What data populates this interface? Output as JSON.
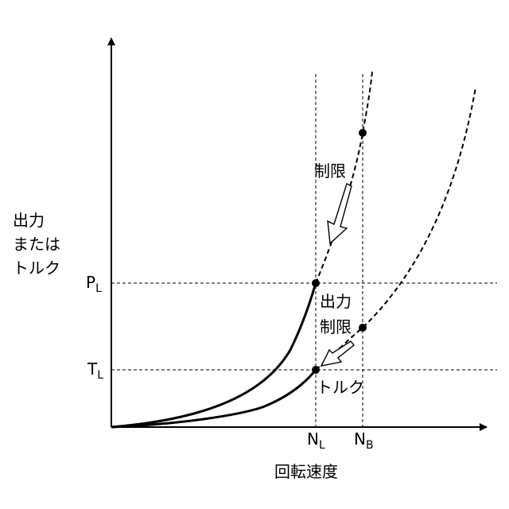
{
  "y_axis_label": [
    "出力",
    "または",
    "トルク"
  ],
  "x_axis_label": "回転速度",
  "y_ticks": {
    "power_limit": {
      "main": "P",
      "sub": "L"
    },
    "torque_limit": {
      "main": "T",
      "sub": "L"
    }
  },
  "x_ticks": {
    "speed_limit": {
      "main": "N",
      "sub": "L"
    },
    "speed_base": {
      "main": "N",
      "sub": "B"
    }
  },
  "curve_labels": {
    "power": "出力",
    "torque": "トルク",
    "limit_upper": "制限",
    "limit_lower": "制限"
  },
  "colors": {
    "line": "#000000",
    "background": "#ffffff"
  }
}
